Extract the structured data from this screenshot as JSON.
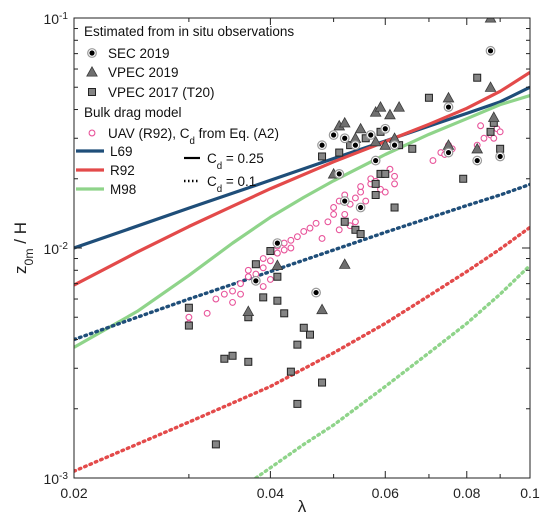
{
  "chart_data": {
    "type": "scatter",
    "xlabel": "λ",
    "ylabel_main": "z",
    "ylabel_sub": "0m",
    "ylabel_rest": " / H",
    "x_scale": "log",
    "y_scale": "log",
    "xlim": [
      0.02,
      0.1
    ],
    "ylim": [
      0.001,
      0.1
    ],
    "x_ticks": [
      {
        "value": 0.02,
        "label": "0.02"
      },
      {
        "value": 0.04,
        "label": "0.04"
      },
      {
        "value": 0.06,
        "label": "0.06"
      },
      {
        "value": 0.08,
        "label": "0.08"
      },
      {
        "value": 0.1,
        "label": "0.1"
      }
    ],
    "y_ticks": [
      {
        "value": 0.001,
        "base": "10",
        "exp": "-3"
      },
      {
        "value": 0.01,
        "base": "10",
        "exp": "-2"
      },
      {
        "value": 0.1,
        "base": "10",
        "exp": "-1"
      }
    ],
    "grid": false,
    "legend_position": "top-left",
    "legend": {
      "observations_header": "Estimated from in situ observations",
      "model_header": "Bulk drag model",
      "sec": "SEC 2019",
      "vpec2019": "VPEC 2019",
      "vpec2017": "VPEC 2017 (T20)",
      "uav": "UAV (R92), C",
      "uav_sub": "d",
      "uav_rest": " from Eq. (A2)",
      "l69": "L69",
      "r92": "R92",
      "m98": "M98",
      "cd_solid_main": "C",
      "cd_solid_sub": "d",
      "cd_solid_rest": " = 0.25",
      "cd_dotted_main": "C",
      "cd_dotted_sub": "d",
      "cd_dotted_rest": " = 0.1"
    },
    "colors": {
      "l69": "#1f4e79",
      "r92": "#e34a4a",
      "m98": "#8fd48a",
      "uav": "#e8559b",
      "sec": "#000000",
      "vpec_fill": "#7a7a7a"
    },
    "lines": [
      {
        "name": "L69",
        "cd": 0.25,
        "style": "solid",
        "color": "#1f4e79",
        "x": [
          0.02,
          0.03,
          0.04,
          0.05,
          0.06,
          0.07,
          0.08,
          0.09,
          0.1
        ],
        "y": [
          0.01,
          0.0149,
          0.0197,
          0.0245,
          0.0292,
          0.0339,
          0.0385,
          0.0432,
          0.05
        ]
      },
      {
        "name": "R92",
        "cd": 0.25,
        "style": "solid",
        "color": "#e34a4a",
        "x": [
          0.02,
          0.025,
          0.03,
          0.035,
          0.04,
          0.05,
          0.06,
          0.07,
          0.08,
          0.09,
          0.1
        ],
        "y": [
          0.0069,
          0.0096,
          0.0124,
          0.0152,
          0.0181,
          0.0237,
          0.029,
          0.0345,
          0.0405,
          0.048,
          0.058
        ]
      },
      {
        "name": "M98",
        "cd": 0.25,
        "style": "solid",
        "color": "#8fd48a",
        "x": [
          0.02,
          0.025,
          0.03,
          0.035,
          0.04,
          0.045,
          0.05,
          0.06,
          0.07,
          0.08,
          0.09,
          0.1
        ],
        "y": [
          0.0037,
          0.0053,
          0.0076,
          0.0105,
          0.0136,
          0.0166,
          0.0196,
          0.0255,
          0.0312,
          0.0365,
          0.042,
          0.046
        ]
      },
      {
        "name": "L69",
        "cd": 0.1,
        "style": "dotted",
        "color": "#1f4e79",
        "x": [
          0.02,
          0.03,
          0.04,
          0.05,
          0.06,
          0.07,
          0.08,
          0.09,
          0.1
        ],
        "y": [
          0.004,
          0.006,
          0.0079,
          0.0098,
          0.0117,
          0.0135,
          0.0153,
          0.017,
          0.0189
        ]
      },
      {
        "name": "R92",
        "cd": 0.1,
        "style": "dotted",
        "color": "#e34a4a",
        "x": [
          0.02,
          0.03,
          0.04,
          0.05,
          0.06,
          0.07,
          0.08,
          0.09,
          0.1
        ],
        "y": [
          0.00107,
          0.00175,
          0.0025,
          0.0035,
          0.0047,
          0.0062,
          0.0079,
          0.0099,
          0.0123
        ]
      },
      {
        "name": "M98",
        "cd": 0.1,
        "style": "dotted",
        "color": "#8fd48a",
        "x": [
          0.038,
          0.045,
          0.05,
          0.06,
          0.07,
          0.08,
          0.09,
          0.1
        ],
        "y": [
          0.001,
          0.0014,
          0.0017,
          0.0025,
          0.0035,
          0.0047,
          0.0063,
          0.0084
        ]
      }
    ],
    "series": [
      {
        "name": "SEC 2019",
        "marker": "circle-black",
        "points": [
          [
            0.048,
            0.028
          ],
          [
            0.05,
            0.031
          ],
          [
            0.052,
            0.03
          ],
          [
            0.054,
            0.028
          ],
          [
            0.057,
            0.031
          ],
          [
            0.06,
            0.033
          ],
          [
            0.062,
            0.028
          ],
          [
            0.058,
            0.024
          ],
          [
            0.052,
            0.016
          ],
          [
            0.055,
            0.015
          ],
          [
            0.041,
            0.0105
          ],
          [
            0.038,
            0.0072
          ],
          [
            0.047,
            0.0064
          ],
          [
            0.051,
            0.021
          ],
          [
            0.075,
            0.041
          ],
          [
            0.075,
            0.026
          ],
          [
            0.087,
            0.072
          ],
          [
            0.09,
            0.025
          ],
          [
            0.083,
            0.024
          ]
        ]
      },
      {
        "name": "VPEC 2019",
        "marker": "triangle-gray",
        "points": [
          [
            0.051,
            0.034
          ],
          [
            0.052,
            0.035
          ],
          [
            0.055,
            0.033
          ],
          [
            0.058,
            0.039
          ],
          [
            0.059,
            0.041
          ],
          [
            0.061,
            0.038
          ],
          [
            0.062,
            0.03
          ],
          [
            0.063,
            0.041
          ],
          [
            0.06,
            0.028
          ],
          [
            0.075,
            0.045
          ],
          [
            0.075,
            0.028
          ],
          [
            0.083,
            0.027
          ],
          [
            0.087,
            0.1
          ],
          [
            0.087,
            0.05
          ],
          [
            0.088,
            0.037
          ],
          [
            0.052,
            0.0085
          ],
          [
            0.041,
            0.0084
          ],
          [
            0.037,
            0.0053
          ],
          [
            0.048,
            0.0054
          ],
          [
            0.05,
            0.021
          ],
          [
            0.054,
            0.03
          ],
          [
            0.058,
            0.029
          ]
        ]
      },
      {
        "name": "VPEC 2017 (T20)",
        "marker": "square-gray",
        "points": [
          [
            0.048,
            0.025
          ],
          [
            0.051,
            0.026
          ],
          [
            0.053,
            0.028
          ],
          [
            0.056,
            0.03
          ],
          [
            0.059,
            0.032
          ],
          [
            0.063,
            0.028
          ],
          [
            0.066,
            0.027
          ],
          [
            0.058,
            0.019
          ],
          [
            0.058,
            0.017
          ],
          [
            0.059,
            0.021
          ],
          [
            0.06,
            0.021
          ],
          [
            0.062,
            0.015
          ],
          [
            0.052,
            0.013
          ],
          [
            0.054,
            0.012
          ],
          [
            0.055,
            0.0115
          ],
          [
            0.04,
            0.0097
          ],
          [
            0.038,
            0.0085
          ],
          [
            0.041,
            0.0075
          ],
          [
            0.039,
            0.0061
          ],
          [
            0.037,
            0.005
          ],
          [
            0.041,
            0.0059
          ],
          [
            0.042,
            0.0052
          ],
          [
            0.044,
            0.0038
          ],
          [
            0.046,
            0.0042
          ],
          [
            0.043,
            0.0029
          ],
          [
            0.035,
            0.0034
          ],
          [
            0.037,
            0.0032
          ],
          [
            0.048,
            0.0026
          ],
          [
            0.044,
            0.0021
          ],
          [
            0.033,
            0.0014
          ],
          [
            0.03,
            0.0055
          ],
          [
            0.03,
            0.0046
          ],
          [
            0.034,
            0.0033
          ],
          [
            0.07,
            0.045
          ],
          [
            0.083,
            0.055
          ],
          [
            0.087,
            0.032
          ],
          [
            0.088,
            0.035
          ],
          [
            0.09,
            0.027
          ],
          [
            0.079,
            0.02
          ],
          [
            0.045,
            0.0045
          ]
        ]
      },
      {
        "name": "UAV (R92)",
        "marker": "circle-pink",
        "points": [
          [
            0.03,
            0.0047
          ],
          [
            0.03,
            0.005
          ],
          [
            0.032,
            0.0052
          ],
          [
            0.033,
            0.006
          ],
          [
            0.034,
            0.0063
          ],
          [
            0.035,
            0.0065
          ],
          [
            0.036,
            0.007
          ],
          [
            0.037,
            0.0075
          ],
          [
            0.037,
            0.008
          ],
          [
            0.038,
            0.0077
          ],
          [
            0.038,
            0.0085
          ],
          [
            0.039,
            0.0082
          ],
          [
            0.039,
            0.009
          ],
          [
            0.04,
            0.0088
          ],
          [
            0.041,
            0.0095
          ],
          [
            0.041,
            0.0102
          ],
          [
            0.042,
            0.0098
          ],
          [
            0.042,
            0.0105
          ],
          [
            0.043,
            0.01
          ],
          [
            0.043,
            0.0108
          ],
          [
            0.044,
            0.0112
          ],
          [
            0.04,
            0.0073
          ],
          [
            0.039,
            0.0068
          ],
          [
            0.036,
            0.0063
          ],
          [
            0.035,
            0.0058
          ],
          [
            0.049,
            0.013
          ],
          [
            0.05,
            0.014
          ],
          [
            0.05,
            0.015
          ],
          [
            0.051,
            0.016
          ],
          [
            0.052,
            0.014
          ],
          [
            0.052,
            0.017
          ],
          [
            0.053,
            0.0155
          ],
          [
            0.054,
            0.0165
          ],
          [
            0.055,
            0.0175
          ],
          [
            0.055,
            0.0185
          ],
          [
            0.056,
            0.016
          ],
          [
            0.057,
            0.019
          ],
          [
            0.057,
            0.02
          ],
          [
            0.058,
            0.0195
          ],
          [
            0.059,
            0.018
          ],
          [
            0.06,
            0.0175
          ],
          [
            0.06,
            0.021
          ],
          [
            0.061,
            0.022
          ],
          [
            0.062,
            0.0205
          ],
          [
            0.053,
            0.0125
          ],
          [
            0.054,
            0.013
          ],
          [
            0.051,
            0.012
          ],
          [
            0.062,
            0.019
          ],
          [
            0.071,
            0.024
          ],
          [
            0.073,
            0.026
          ],
          [
            0.074,
            0.0255
          ],
          [
            0.075,
            0.028
          ],
          [
            0.076,
            0.027
          ],
          [
            0.083,
            0.028
          ],
          [
            0.085,
            0.03
          ],
          [
            0.087,
            0.031
          ],
          [
            0.088,
            0.03
          ],
          [
            0.089,
            0.033
          ],
          [
            0.09,
            0.032
          ],
          [
            0.084,
            0.034
          ],
          [
            0.045,
            0.0118
          ],
          [
            0.046,
            0.0122
          ],
          [
            0.047,
            0.0128
          ],
          [
            0.048,
            0.011
          ]
        ]
      }
    ]
  }
}
